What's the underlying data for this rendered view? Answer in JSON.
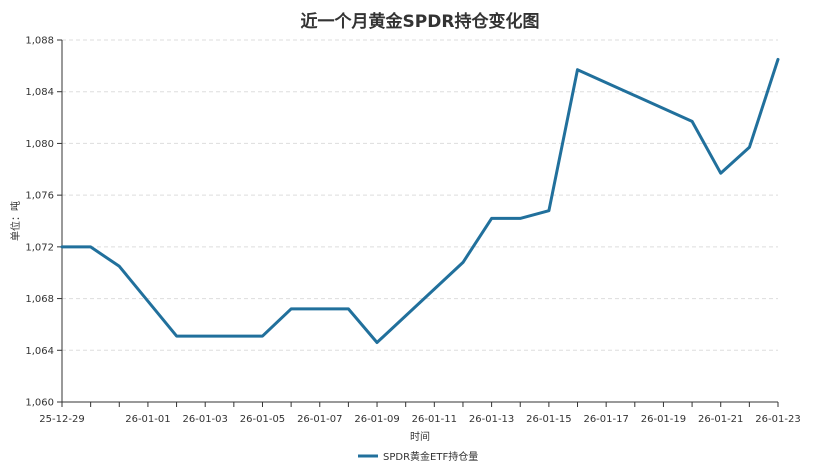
{
  "chart_data": {
    "type": "line",
    "title": "近一个月黄金SPDR持仓变化图",
    "xlabel": "时间",
    "ylabel": "单位：吨",
    "ylim": [
      1060,
      1088
    ],
    "yticks": [
      1060,
      1064,
      1068,
      1072,
      1076,
      1080,
      1084,
      1088
    ],
    "ytick_labels": [
      "1,060",
      "1,064",
      "1,068",
      "1,072",
      "1,076",
      "1,080",
      "1,084",
      "1,088"
    ],
    "x": [
      "25-12-29",
      "25-12-30",
      "25-12-31",
      "26-01-01",
      "26-01-02",
      "26-01-03",
      "26-01-04",
      "26-01-05",
      "26-01-06",
      "26-01-07",
      "26-01-08",
      "26-01-09",
      "26-01-10",
      "26-01-11",
      "26-01-12",
      "26-01-13",
      "26-01-14",
      "26-01-15",
      "26-01-16",
      "26-01-17",
      "26-01-18",
      "26-01-19",
      "26-01-20",
      "26-01-21",
      "26-01-22",
      "26-01-23"
    ],
    "xtick_labels": [
      "25-12-29",
      "26-01-01",
      "26-01-03",
      "26-01-05",
      "26-01-07",
      "26-01-09",
      "26-01-11",
      "26-01-13",
      "26-01-15",
      "26-01-17",
      "26-01-19",
      "26-01-21",
      "26-01-23"
    ],
    "series": [
      {
        "name": "SPDR黄金ETF持仓量",
        "color": "#21709c",
        "values": [
          1072.0,
          1072.0,
          1070.5,
          null,
          1065.1,
          null,
          null,
          1065.1,
          1067.2,
          null,
          1067.2,
          1064.6,
          null,
          null,
          1070.8,
          1074.2,
          1074.2,
          1074.8,
          1085.7,
          null,
          null,
          null,
          1081.7,
          1077.7,
          1079.7,
          1086.5
        ]
      }
    ],
    "grid": true,
    "legend": "bottom-center"
  }
}
